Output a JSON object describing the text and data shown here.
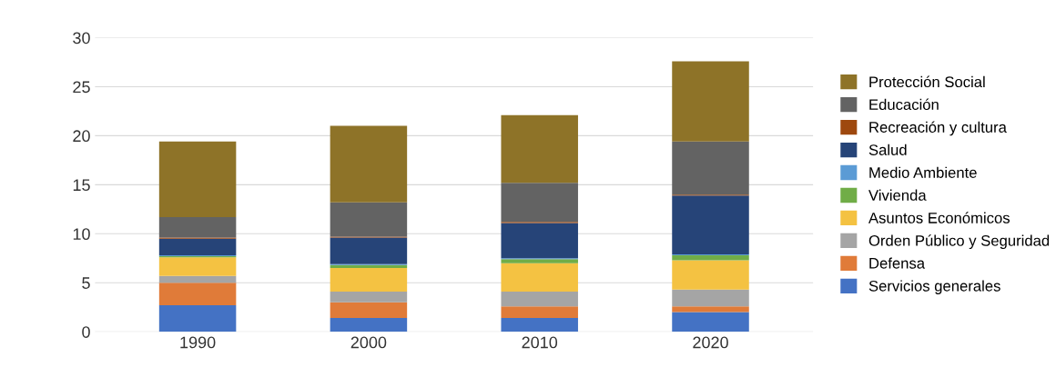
{
  "chart_data": {
    "type": "bar",
    "stacked": true,
    "categories": [
      "1990",
      "2000",
      "2010",
      "2020"
    ],
    "series": [
      {
        "name": "Servicios generales",
        "color": "#4472c4",
        "values": [
          2.7,
          1.4,
          1.4,
          2.0
        ]
      },
      {
        "name": "Defensa",
        "color": "#e07b39",
        "values": [
          2.3,
          1.6,
          1.2,
          0.6
        ]
      },
      {
        "name": "Orden Público y Seguridad",
        "color": "#a5a5a5",
        "values": [
          0.7,
          1.1,
          1.5,
          1.7
        ]
      },
      {
        "name": "Asuntos Económicos",
        "color": "#f4c242",
        "values": [
          1.9,
          2.4,
          2.9,
          3.0
        ]
      },
      {
        "name": "Vivienda",
        "color": "#70ad47",
        "values": [
          0.1,
          0.3,
          0.4,
          0.5
        ]
      },
      {
        "name": "Medio Ambiente",
        "color": "#5b9bd5",
        "values": [
          0.1,
          0.1,
          0.1,
          0.1
        ]
      },
      {
        "name": "Salud",
        "color": "#264478",
        "values": [
          1.7,
          2.7,
          3.6,
          6.0
        ]
      },
      {
        "name": "Recreación y cultura",
        "color": "#9e480e",
        "values": [
          0.1,
          0.1,
          0.1,
          0.1
        ]
      },
      {
        "name": "Educación",
        "color": "#636363",
        "values": [
          2.1,
          3.5,
          4.0,
          5.4
        ]
      },
      {
        "name": "Protección Social",
        "color": "#8e7328",
        "values": [
          7.7,
          7.8,
          6.9,
          8.2
        ]
      }
    ],
    "ylim": [
      0,
      30
    ],
    "yticks": [
      0,
      5,
      10,
      15,
      20,
      25,
      30
    ],
    "grid": "y",
    "legend": "right"
  }
}
